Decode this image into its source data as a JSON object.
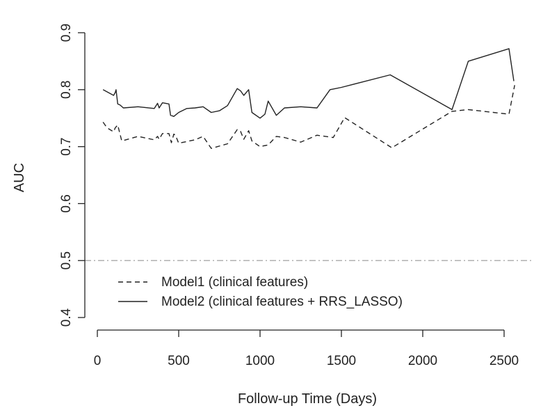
{
  "chart_data": {
    "type": "line",
    "xlabel": "Follow-up Time (Days)",
    "ylabel": "AUC",
    "xlim": [
      0,
      2600
    ],
    "ylim": [
      0.4,
      0.9
    ],
    "xticks": [
      0,
      500,
      1000,
      1500,
      2000,
      2500
    ],
    "yticks": [
      0.4,
      0.5,
      0.6,
      0.7,
      0.8,
      0.9
    ],
    "xtick_labels": [
      "0",
      "500",
      "1000",
      "1500",
      "2000",
      "2500"
    ],
    "ytick_labels": [
      "0.4",
      "0.5",
      "0.6",
      "0.7",
      "0.8",
      "0.9"
    ],
    "grid": false,
    "legend_position": "bottom-left",
    "reference_line": {
      "y": 0.5,
      "style": "dash-dot",
      "color": "#aaaaaa"
    },
    "series": [
      {
        "name": "Model1 (clinical features)",
        "style": "dashed",
        "color": "#222222",
        "x": [
          35,
          60,
          100,
          110,
          125,
          150,
          250,
          350,
          370,
          380,
          400,
          440,
          455,
          470,
          480,
          500,
          600,
          650,
          700,
          800,
          860,
          880,
          900,
          930,
          950,
          1000,
          1050,
          1100,
          1150,
          1250,
          1350,
          1450,
          1520,
          1810,
          2180,
          2280,
          2530,
          2565
        ],
        "y": [
          0.743,
          0.733,
          0.726,
          0.733,
          0.738,
          0.71,
          0.718,
          0.712,
          0.718,
          0.713,
          0.723,
          0.723,
          0.707,
          0.722,
          0.72,
          0.706,
          0.712,
          0.718,
          0.697,
          0.705,
          0.73,
          0.727,
          0.713,
          0.728,
          0.71,
          0.7,
          0.703,
          0.718,
          0.716,
          0.708,
          0.72,
          0.716,
          0.751,
          0.698,
          0.762,
          0.765,
          0.757,
          0.808
        ]
      },
      {
        "name": "Model2 (clinical features + RRS_LASSO)",
        "style": "solid",
        "color": "#222222",
        "x": [
          35,
          100,
          110,
          115,
          125,
          140,
          160,
          250,
          350,
          370,
          380,
          400,
          440,
          450,
          470,
          500,
          550,
          600,
          650,
          700,
          750,
          800,
          860,
          880,
          900,
          930,
          950,
          1000,
          1030,
          1050,
          1100,
          1150,
          1250,
          1350,
          1430,
          1500,
          1800,
          2180,
          2280,
          2530,
          2560
        ],
        "y": [
          0.8,
          0.79,
          0.795,
          0.8,
          0.775,
          0.773,
          0.768,
          0.77,
          0.767,
          0.776,
          0.768,
          0.777,
          0.775,
          0.755,
          0.753,
          0.76,
          0.767,
          0.768,
          0.77,
          0.76,
          0.763,
          0.772,
          0.802,
          0.798,
          0.79,
          0.8,
          0.76,
          0.75,
          0.757,
          0.78,
          0.755,
          0.768,
          0.77,
          0.768,
          0.8,
          0.804,
          0.826,
          0.765,
          0.85,
          0.872,
          0.815
        ]
      }
    ]
  }
}
